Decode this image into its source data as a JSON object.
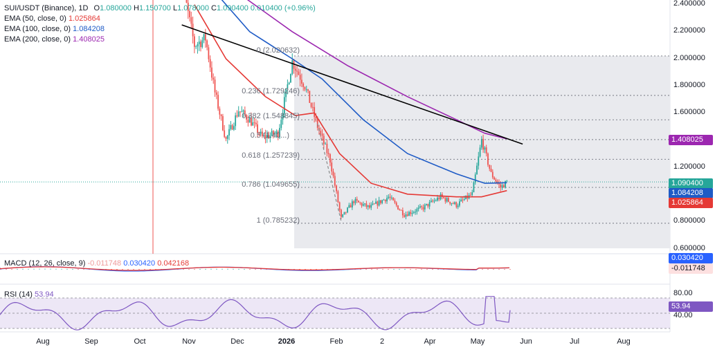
{
  "header": {
    "symbol": "SUI/USDT (Binance), 1D",
    "o_label": "O",
    "o_value": "1.080000",
    "h_label": "H",
    "h_value": "1.150700",
    "l_label": "L",
    "l_value": "1.078000",
    "c_label": "C",
    "c_value": "1.090400",
    "change": "0.010400 (+0.96%)"
  },
  "indicators": {
    "ema50": {
      "label": "EMA (50, close, 0)",
      "value": "1.025864",
      "color": "#e53935"
    },
    "ema100": {
      "label": "EMA (100, close, 0)",
      "value": "1.084208",
      "color": "#1e5bc6"
    },
    "ema200": {
      "label": "EMA (200, close, 0)",
      "value": "1.408025",
      "color": "#9c27b0"
    },
    "macd": {
      "label": "MACD (12, 26, close, 9)",
      "hist": "-0.011748",
      "macd": "0.030420",
      "signal": "0.042168"
    },
    "rsi": {
      "label": "RSI (14)",
      "value": "53.94"
    }
  },
  "colors": {
    "up": "#26a69a",
    "down": "#ef5350",
    "price_tag": "#26a69a",
    "trendline": "#000000"
  },
  "price_scale": {
    "ticks": [
      "2.400000",
      "2.200000",
      "2.000000",
      "1.800000",
      "1.600000",
      "1.200000",
      "0.800000",
      "0.600000"
    ],
    "current_price": "1.090400",
    "macd_tags": [
      "0.030420",
      "-0.011748"
    ],
    "rsi_ticks": [
      "80.00",
      "40.00"
    ],
    "rsi_tag": "53.94"
  },
  "time_axis": [
    "Aug",
    "Sep",
    "Oct",
    "Nov",
    "Dec",
    "2026",
    "Feb",
    "2",
    "Apr",
    "May",
    "Jun",
    "Jul",
    "Aug"
  ],
  "fibonacci": [
    {
      "label": "0 (2.020632)",
      "level": 0,
      "price": 2.020632
    },
    {
      "label": "0.236 (1.729246)",
      "level": 0.236,
      "price": 1.729246
    },
    {
      "label": "0.382 (1.548845)",
      "level": 0.382,
      "price": 1.548845
    },
    {
      "label": "0.5 (1.40...)",
      "level": 0.5,
      "price": 1.4029
    },
    {
      "label": "0.618 (1.257239)",
      "level": 0.618,
      "price": 1.257239
    },
    {
      "label": "0.786 (1.049655)",
      "level": 0.786,
      "price": 1.049655
    },
    {
      "label": "1 (0.785232)",
      "level": 1,
      "price": 0.785232
    }
  ],
  "chart_data": {
    "type": "candlestick",
    "title": "SUI/USDT (Binance), 1D",
    "ylim": [
      0.58,
      2.45
    ],
    "x_range": [
      "Jul 2025",
      "Aug 2026"
    ],
    "grid": false,
    "trendline": {
      "from": {
        "date": "Oct 28 2025",
        "price": 2.25
      },
      "to": {
        "date": "Jun 2026",
        "price": 1.37
      }
    },
    "price_path": [
      {
        "date": "Oct 26 2025",
        "close": 2.65
      },
      {
        "date": "Oct 30 2025",
        "close": 2.45
      },
      {
        "date": "Nov 5 2025",
        "close": 2.1
      },
      {
        "date": "Nov 12 2025",
        "close": 2.15
      },
      {
        "date": "Nov 18 2025",
        "close": 1.75
      },
      {
        "date": "Nov 25 2025",
        "close": 1.4
      },
      {
        "date": "Dec 3 2025",
        "close": 1.62
      },
      {
        "date": "Dec 10 2025",
        "close": 1.55
      },
      {
        "date": "Dec 18 2025",
        "close": 1.42
      },
      {
        "date": "Dec 28 2025",
        "close": 1.45
      },
      {
        "date": "Jan 6 2026",
        "close": 1.98
      },
      {
        "date": "Jan 14 2026",
        "close": 1.8
      },
      {
        "date": "Jan 22 2026",
        "close": 1.5
      },
      {
        "date": "Jan 30 2026",
        "close": 1.25
      },
      {
        "date": "Feb 6 2026",
        "close": 0.82
      },
      {
        "date": "Feb 14 2026",
        "close": 0.95
      },
      {
        "date": "Feb 24 2026",
        "close": 0.9
      },
      {
        "date": "Mar 8 2026",
        "close": 0.98
      },
      {
        "date": "Mar 18 2026",
        "close": 0.85
      },
      {
        "date": "Mar 30 2026",
        "close": 0.9
      },
      {
        "date": "Apr 10 2026",
        "close": 0.98
      },
      {
        "date": "Apr 20 2026",
        "close": 0.92
      },
      {
        "date": "Apr 30 2026",
        "close": 1.0
      },
      {
        "date": "May 6 2026",
        "close": 1.4
      },
      {
        "date": "May 12 2026",
        "close": 1.15
      },
      {
        "date": "May 18 2026",
        "close": 1.05
      },
      {
        "date": "May 22 2026",
        "close": 1.09
      }
    ],
    "series": [
      {
        "name": "EMA (50, close, 0)",
        "last": 1.025864
      },
      {
        "name": "EMA (100, close, 0)",
        "last": 1.084208
      },
      {
        "name": "EMA (200, close, 0)",
        "last": 1.408025
      }
    ]
  }
}
